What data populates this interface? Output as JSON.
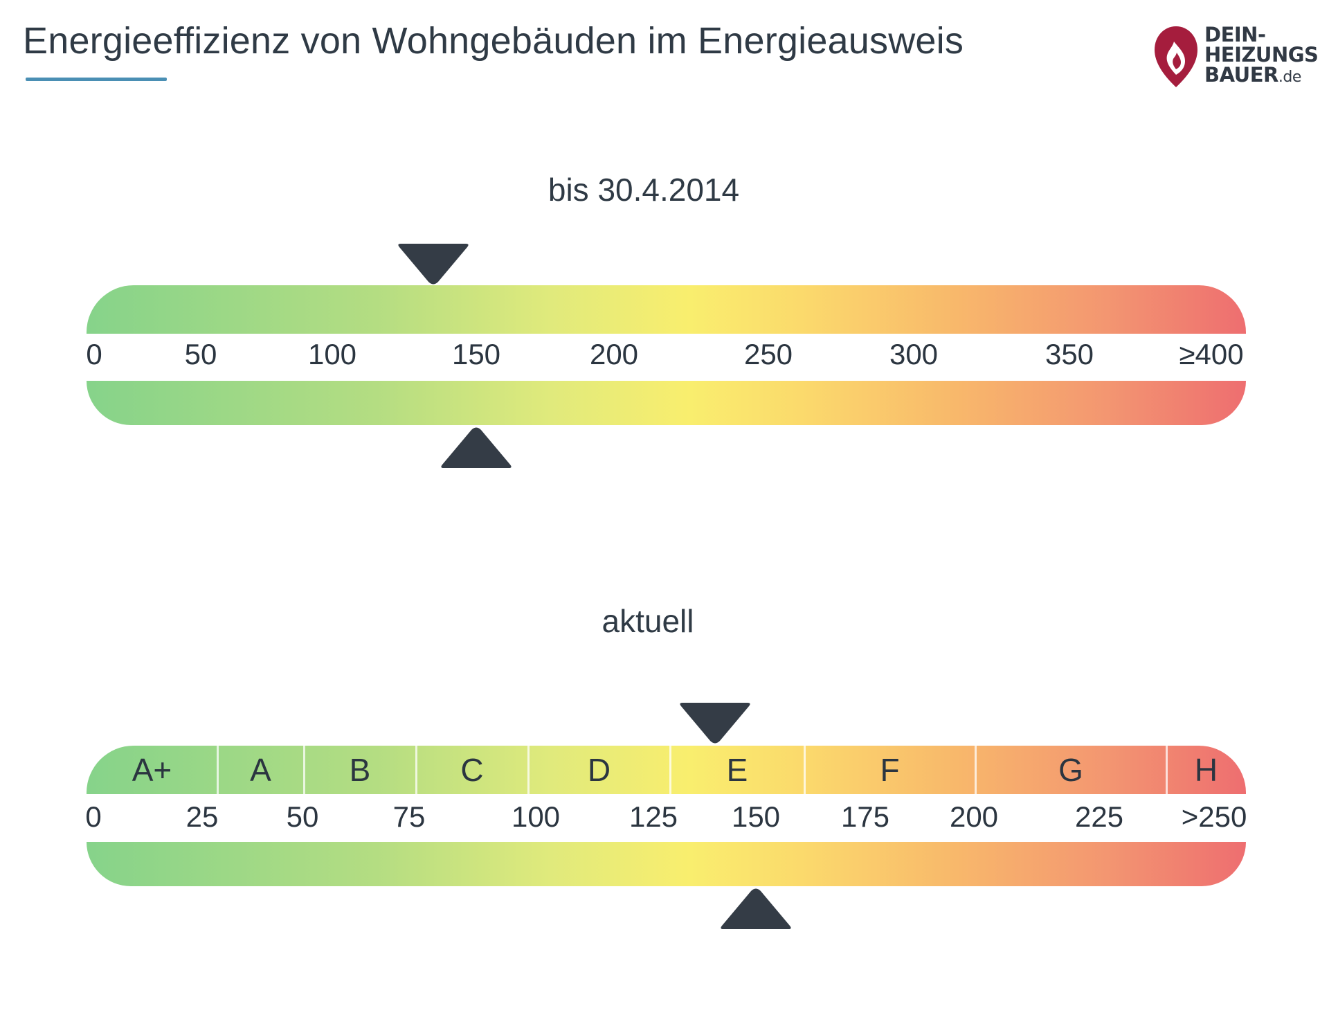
{
  "header": {
    "title": "Energieeffizienz von Wohngebäuden im Energieausweis"
  },
  "logo": {
    "line1": "DEIN-",
    "line2": "HEIZUNGS",
    "line3": "BAUER",
    "tld": ".de",
    "brand_color": "#a51d3d"
  },
  "scales": {
    "old": {
      "label": "bis 30.4.2014",
      "ticks": [
        "0",
        "50",
        "100",
        "150",
        "200",
        "250",
        "300",
        "350",
        "≥400"
      ],
      "range": [
        0,
        400
      ],
      "marker_top_value": 135,
      "marker_bottom_value": 150
    },
    "current": {
      "label": "aktuell",
      "ticks": [
        "0",
        "25",
        "50",
        "75",
        "100",
        "125",
        "150",
        "175",
        "200",
        "225",
        ">250"
      ],
      "range": [
        0,
        250
      ],
      "classes": [
        "A+",
        "A",
        "B",
        "C",
        "D",
        "E",
        "F",
        "G",
        "H"
      ],
      "class_bounds": [
        0,
        30,
        50,
        75,
        100,
        130,
        160,
        200,
        250,
        260
      ],
      "marker_top_value": 140,
      "marker_bottom_value": 150
    }
  },
  "colors": {
    "gradient_start": "#86d38a",
    "gradient_mid": "#f9ee6e",
    "gradient_end": "#ee6e70",
    "marker": "#343c46",
    "title_underline": "#4a8fb4"
  }
}
